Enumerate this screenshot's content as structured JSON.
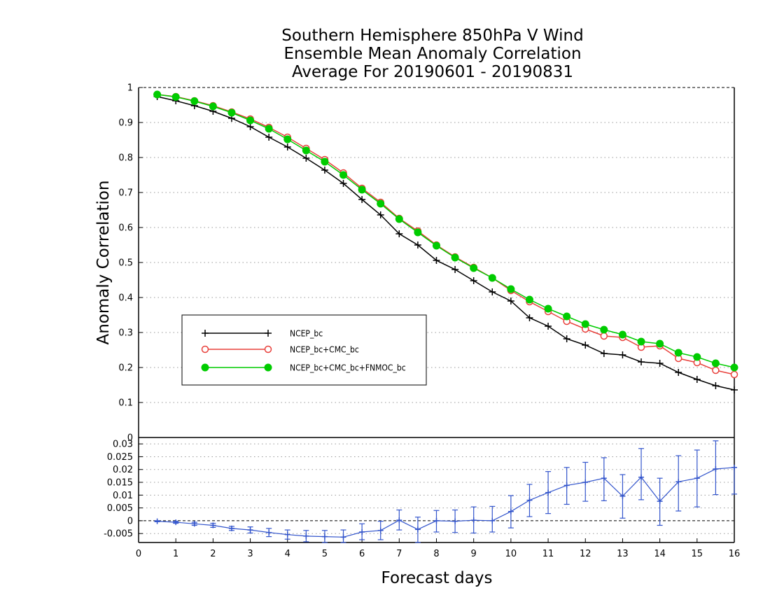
{
  "chart_data": [
    {
      "type": "line",
      "title": [
        "Southern Hemisphere 850hPa V Wind",
        "Ensemble Mean Anomaly Correlation",
        "Average For 20190601 - 20190831"
      ],
      "ylabel": "Anomaly Correlation",
      "xlim": [
        0,
        16
      ],
      "ylim": [
        0,
        1
      ],
      "x_ticks": [
        "0",
        "1",
        "2",
        "3",
        "4",
        "5",
        "6",
        "7",
        "8",
        "9",
        "10",
        "11",
        "12",
        "13",
        "14",
        "15",
        "16"
      ],
      "y_ticks": [
        "0",
        "0.1",
        "0.2",
        "0.3",
        "0.4",
        "0.5",
        "0.6",
        "0.7",
        "0.8",
        "0.9",
        "1"
      ],
      "grid": true,
      "legend_placement": "lower-left",
      "x": [
        0.5,
        1,
        1.5,
        2,
        2.5,
        3,
        3.5,
        4,
        4.5,
        5,
        5.5,
        6,
        6.5,
        7,
        7.5,
        8,
        8.5,
        9,
        9.5,
        10,
        10.5,
        11,
        11.5,
        12,
        12.5,
        13,
        13.5,
        14,
        14.5,
        15,
        15.5,
        16
      ],
      "series": [
        {
          "name": "NCEP_bc",
          "color": "#000000",
          "marker": "plus",
          "values": [
            0.974,
            0.962,
            0.948,
            0.932,
            0.912,
            0.888,
            0.858,
            0.83,
            0.798,
            0.764,
            0.726,
            0.68,
            0.636,
            0.582,
            0.55,
            0.506,
            0.48,
            0.448,
            0.416,
            0.39,
            0.342,
            0.318,
            0.282,
            0.264,
            0.24,
            0.236,
            0.216,
            0.212,
            0.186,
            0.166,
            0.148,
            0.136
          ]
        },
        {
          "name": "NCEP_bc+CMC_bc",
          "color": "#e8413c",
          "marker": "open-circle",
          "values": [
            0.98,
            0.974,
            0.962,
            0.948,
            0.93,
            0.91,
            0.886,
            0.858,
            0.826,
            0.794,
            0.756,
            0.712,
            0.672,
            0.626,
            0.59,
            0.55,
            0.516,
            0.486,
            0.456,
            0.42,
            0.388,
            0.36,
            0.332,
            0.31,
            0.29,
            0.286,
            0.258,
            0.262,
            0.226,
            0.214,
            0.192,
            0.18
          ]
        },
        {
          "name": "NCEP_bc+CMC_bc+FNMOC_bc",
          "color": "#00cc00",
          "marker": "filled-circle",
          "values": [
            0.98,
            0.973,
            0.961,
            0.946,
            0.928,
            0.906,
            0.882,
            0.852,
            0.82,
            0.788,
            0.75,
            0.708,
            0.668,
            0.624,
            0.586,
            0.548,
            0.514,
            0.484,
            0.456,
            0.424,
            0.394,
            0.368,
            0.346,
            0.324,
            0.308,
            0.294,
            0.274,
            0.268,
            0.242,
            0.23,
            0.212,
            0.2
          ]
        }
      ]
    },
    {
      "type": "line",
      "xlabel": "Forecast days",
      "xlim": [
        0,
        16
      ],
      "ylim": [
        -0.0085,
        0.0325
      ],
      "x_ticks": [
        "0",
        "1",
        "2",
        "3",
        "4",
        "5",
        "6",
        "7",
        "8",
        "9",
        "10",
        "11",
        "12",
        "13",
        "14",
        "15",
        "16"
      ],
      "y_ticks": [
        "-0.005",
        "0",
        "0.005",
        "0.01",
        "0.015",
        "0.02",
        "0.025",
        "0.03"
      ],
      "grid": true,
      "zero_line": "dashed",
      "x": [
        0.5,
        1,
        1.5,
        2,
        2.5,
        3,
        3.5,
        4,
        4.5,
        5,
        5.5,
        6,
        6.5,
        7,
        7.5,
        8,
        8.5,
        9,
        9.5,
        10,
        10.5,
        11,
        11.5,
        12,
        12.5,
        13,
        13.5,
        14,
        14.5,
        15,
        15.5,
        16
      ],
      "series": [
        {
          "color": "#3355cc",
          "marker": "plus",
          "values": [
            -0.0002,
            -0.0006,
            -0.0012,
            -0.0018,
            -0.003,
            -0.0036,
            -0.0046,
            -0.0054,
            -0.006,
            -0.0062,
            -0.0064,
            -0.0044,
            -0.0038,
            0.0002,
            -0.0034,
            0.0,
            -0.0002,
            0.0002,
            0.0,
            0.0036,
            0.008,
            0.011,
            0.0138,
            0.015,
            0.0166,
            0.0096,
            0.017,
            0.0076,
            0.0152,
            0.0166,
            0.0202,
            0.0208
          ],
          "error_low": [
            -0.0004,
            -0.001,
            -0.0018,
            -0.0026,
            -0.0038,
            -0.0048,
            -0.0062,
            -0.0072,
            -0.0082,
            -0.0085,
            -0.0085,
            -0.0074,
            -0.0074,
            -0.0036,
            -0.0085,
            -0.0044,
            -0.0046,
            -0.0048,
            -0.0044,
            -0.0028,
            0.0016,
            0.0028,
            0.0064,
            0.0076,
            0.0078,
            0.001,
            0.0082,
            -0.0018,
            0.0038,
            0.0054,
            0.0102,
            0.0104
          ],
          "error_high": [
            0.0,
            -0.0002,
            -0.0006,
            -0.001,
            -0.0022,
            -0.0024,
            -0.003,
            -0.0036,
            -0.0038,
            -0.0038,
            -0.0036,
            -0.0012,
            -0.0002,
            0.0042,
            0.0014,
            0.004,
            0.0042,
            0.0054,
            0.0056,
            0.0098,
            0.0142,
            0.0192,
            0.0208,
            0.0228,
            0.0246,
            0.018,
            0.0282,
            0.0166,
            0.0254,
            0.0276,
            0.0312,
            0.0208
          ]
        }
      ]
    }
  ]
}
